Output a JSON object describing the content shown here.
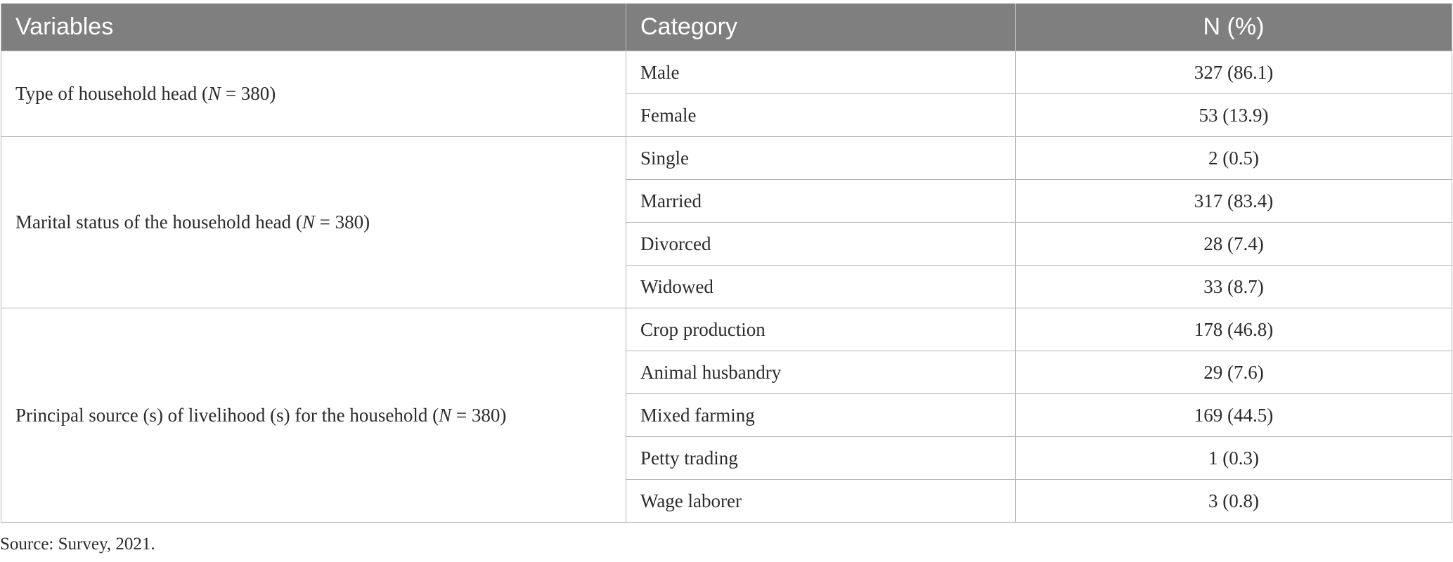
{
  "header": {
    "col1": "Variables",
    "col2": "Category",
    "col3": "N (%)"
  },
  "groups": [
    {
      "variable_prefix": "Type of household head (",
      "n_symbol": "N",
      "variable_suffix": " = 380)",
      "rows": [
        {
          "category": "Male",
          "value": "327 (86.1)"
        },
        {
          "category": "Female",
          "value": "53 (13.9)"
        }
      ]
    },
    {
      "variable_prefix": "Marital status of the household head (",
      "n_symbol": "N",
      "variable_suffix": " = 380)",
      "rows": [
        {
          "category": "Single",
          "value": "2 (0.5)"
        },
        {
          "category": "Married",
          "value": "317 (83.4)"
        },
        {
          "category": "Divorced",
          "value": "28 (7.4)"
        },
        {
          "category": "Widowed",
          "value": "33 (8.7)"
        }
      ]
    },
    {
      "variable_prefix": "Principal source (s) of livelihood (s) for the household (",
      "n_symbol": "N",
      "variable_suffix": " = 380)",
      "rows": [
        {
          "category": "Crop production",
          "value": "178 (46.8)"
        },
        {
          "category": "Animal husbandry",
          "value": "29 (7.6)"
        },
        {
          "category": "Mixed farming",
          "value": "169 (44.5)"
        },
        {
          "category": "Petty trading",
          "value": "1 (0.3)"
        },
        {
          "category": "Wage laborer",
          "value": "3 (0.8)"
        }
      ]
    }
  ],
  "footnote": "Source: Survey, 2021."
}
